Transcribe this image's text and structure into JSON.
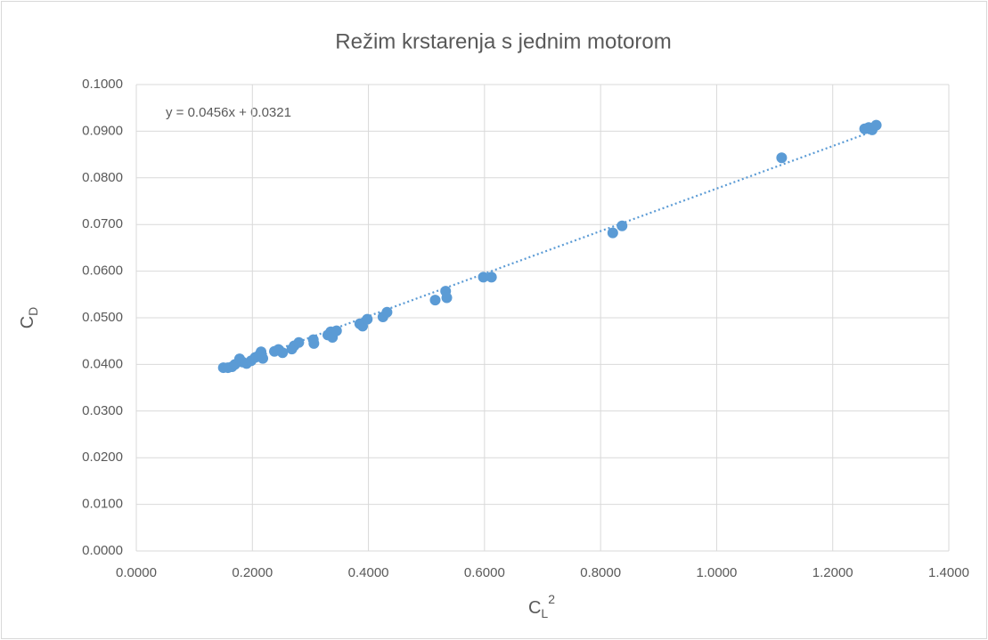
{
  "chart_data": {
    "type": "scatter",
    "title": "Režim krstarenja s jednim motorom",
    "xlabel": {
      "main": "C",
      "sub": "L",
      "sup": "2"
    },
    "ylabel": {
      "main": "C",
      "sub": "D"
    },
    "series": [
      {
        "color": "#5b9bd5",
        "x": [
          0.15,
          0.158,
          0.165,
          0.17,
          0.178,
          0.183,
          0.19,
          0.198,
          0.205,
          0.212,
          0.215,
          0.218,
          0.238,
          0.245,
          0.252,
          0.268,
          0.272,
          0.28,
          0.305,
          0.306,
          0.33,
          0.335,
          0.338,
          0.345,
          0.385,
          0.39,
          0.398,
          0.425,
          0.432,
          0.515,
          0.533,
          0.535,
          0.598,
          0.612,
          0.821,
          0.837,
          1.112,
          1.255,
          1.262,
          1.268,
          1.275
        ],
        "values": [
          0.0393,
          0.0393,
          0.0395,
          0.04,
          0.0412,
          0.0405,
          0.0402,
          0.0408,
          0.0415,
          0.042,
          0.0427,
          0.0413,
          0.0428,
          0.0432,
          0.0425,
          0.0433,
          0.044,
          0.0447,
          0.0453,
          0.0445,
          0.0463,
          0.047,
          0.0458,
          0.0472,
          0.0487,
          0.0482,
          0.0497,
          0.0502,
          0.0512,
          0.0538,
          0.0557,
          0.0543,
          0.0587,
          0.0587,
          0.0682,
          0.0697,
          0.0843,
          0.0905,
          0.0908,
          0.0903,
          0.0913
        ]
      }
    ],
    "trendline": {
      "slope": 0.0456,
      "intercept": 0.0321,
      "label": "y = 0.0456x + 0.0321",
      "color": "#5b9bd5"
    },
    "xlim": [
      0,
      1.4
    ],
    "xticks": [
      {
        "value": 0,
        "label": "0.0000"
      },
      {
        "value": 0.2,
        "label": "0.2000"
      },
      {
        "value": 0.4,
        "label": "0.4000"
      },
      {
        "value": 0.6,
        "label": "0.6000"
      },
      {
        "value": 0.8,
        "label": "0.8000"
      },
      {
        "value": 1.0,
        "label": "1.0000"
      },
      {
        "value": 1.2,
        "label": "1.2000"
      },
      {
        "value": 1.4,
        "label": "1.4000"
      }
    ],
    "ylim": [
      0,
      0.1
    ],
    "yticks": [
      {
        "value": 0,
        "label": "0.0000"
      },
      {
        "value": 0.01,
        "label": "0.0100"
      },
      {
        "value": 0.02,
        "label": "0.0200"
      },
      {
        "value": 0.03,
        "label": "0.0300"
      },
      {
        "value": 0.04,
        "label": "0.0400"
      },
      {
        "value": 0.05,
        "label": "0.0500"
      },
      {
        "value": 0.06,
        "label": "0.0600"
      },
      {
        "value": 0.07,
        "label": "0.0700"
      },
      {
        "value": 0.08,
        "label": "0.0800"
      },
      {
        "value": 0.09,
        "label": "0.0900"
      },
      {
        "value": 0.1,
        "label": "0.1000"
      }
    ],
    "grid": true
  }
}
